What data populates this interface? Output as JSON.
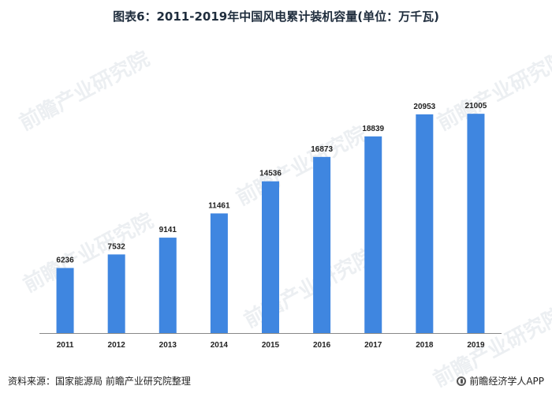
{
  "title": "图表6：2011-2019年中国风电累计装机容量(单位：万千瓦)",
  "source": "资料来源：国家能源局 前瞻产业研究院整理",
  "footer_brand": "前瞻经济学人APP",
  "watermark_text": "前瞻产业研究院",
  "colors": {
    "bar": "#3f86e0",
    "text": "#222222"
  },
  "chart_data": {
    "type": "bar",
    "title": "图表6：2011-2019年中国风电累计装机容量(单位：万千瓦)",
    "xlabel": "",
    "ylabel": "",
    "categories": [
      "2011",
      "2012",
      "2013",
      "2014",
      "2015",
      "2016",
      "2017",
      "2018",
      "2019"
    ],
    "values": [
      6236,
      7532,
      9141,
      11461,
      14536,
      16873,
      18839,
      20953,
      21005
    ],
    "ylim": [
      0,
      23500
    ],
    "grid": false,
    "legend": "none"
  }
}
